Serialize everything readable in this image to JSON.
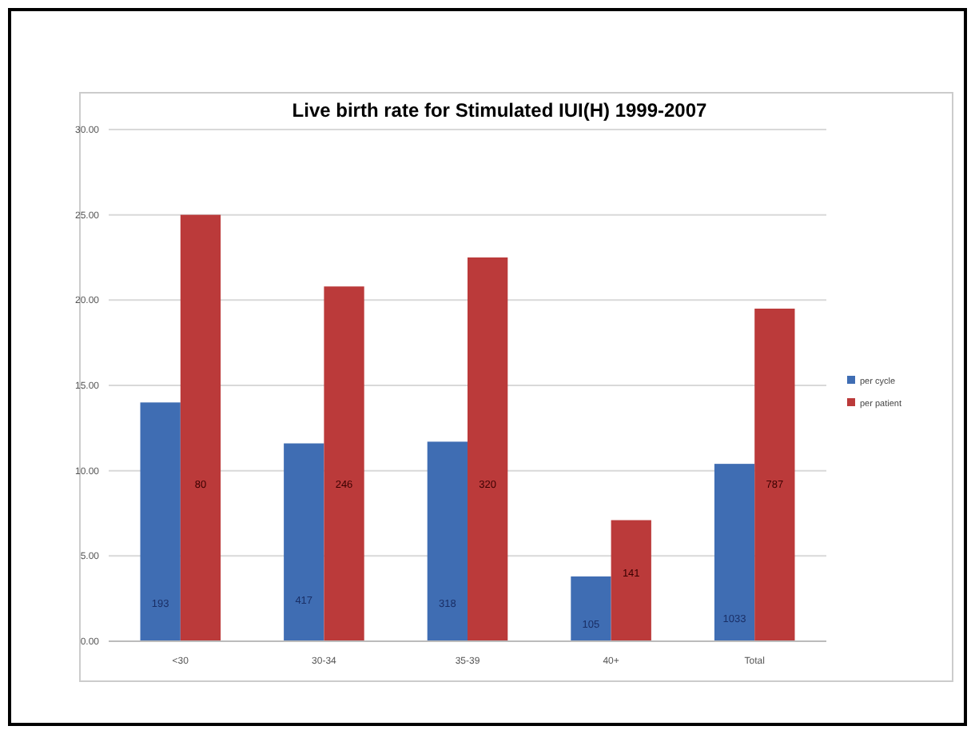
{
  "chart_data": {
    "type": "bar",
    "title": "Live birth rate for Stimulated IUI(H) 1999-2007",
    "categories": [
      "<30",
      "30-34",
      "35-39",
      "40+",
      "Total"
    ],
    "series": [
      {
        "name": "per cycle",
        "color": "#3f6db3",
        "values": [
          14.0,
          11.6,
          11.7,
          3.8,
          10.4
        ]
      },
      {
        "name": "per patient",
        "color": "#bb3a3a",
        "values": [
          25.0,
          20.8,
          22.5,
          7.1,
          19.5
        ]
      }
    ],
    "ylim": [
      0,
      30
    ],
    "yticks": [
      {
        "value": 0,
        "label": "0.00"
      },
      {
        "value": 5,
        "label": "5.00"
      },
      {
        "value": 10,
        "label": "10.00"
      },
      {
        "value": 15,
        "label": "15.00"
      },
      {
        "value": 20,
        "label": "20.00"
      },
      {
        "value": 25,
        "label": "25.00"
      },
      {
        "value": 30,
        "label": "30.00"
      }
    ],
    "grid": "y",
    "legend": "right",
    "annotations": [
      {
        "text": "193",
        "x": "<30",
        "y": 2.2
      },
      {
        "text": "417",
        "x": "30-34",
        "y": 2.4
      },
      {
        "text": "318",
        "x": "35-39",
        "y": 2.2
      },
      {
        "text": "105",
        "x": "40+",
        "y": 1.0
      },
      {
        "text": "1033",
        "x": "Total",
        "y": 1.3
      },
      {
        "text": "80",
        "x": "<30",
        "y": 9.2
      },
      {
        "text": "246",
        "x": "30-34",
        "y": 9.2
      },
      {
        "text": "320",
        "x": "35-39",
        "y": 9.2
      },
      {
        "text": "141",
        "x": "40+",
        "y": 4.0
      },
      {
        "text": "787",
        "x": "Total",
        "y": 9.2
      }
    ]
  }
}
